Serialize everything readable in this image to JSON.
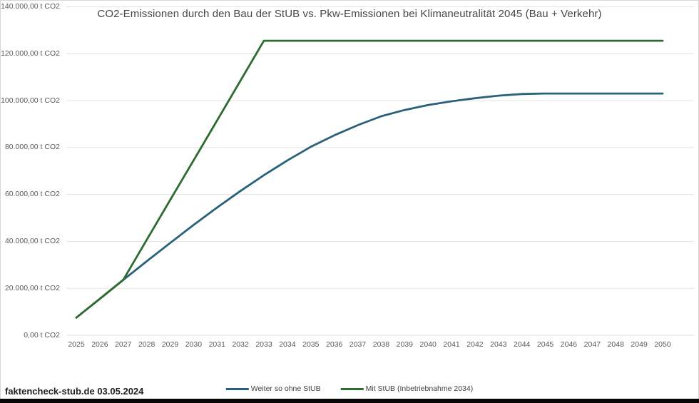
{
  "page": {
    "footer": "faktencheck-stub.de 03.05.2024"
  },
  "chart_data": {
    "type": "line",
    "title": "CO2-Emissionen durch den Bau der StUB vs. Pkw-Emissionen bei Klimaneutralität 2045 (Bau + Verkehr)",
    "categories": [
      "2025",
      "2026",
      "2027",
      "2028",
      "2029",
      "2030",
      "2031",
      "2032",
      "2033",
      "2034",
      "2035",
      "2036",
      "2037",
      "2038",
      "2039",
      "2040",
      "2041",
      "2042",
      "2043",
      "2044",
      "2045",
      "2046",
      "2047",
      "2048",
      "2049",
      "2050"
    ],
    "series": [
      {
        "name": "Weiter so ohne StUB",
        "color": "#2a617a",
        "values": [
          7500,
          15500,
          23600,
          31500,
          39300,
          47000,
          54400,
          61500,
          68200,
          74500,
          80300,
          85200,
          89500,
          93300,
          96000,
          98100,
          99700,
          101000,
          102100,
          102800,
          103000,
          103000,
          103000,
          103000,
          103000,
          103000
        ]
      },
      {
        "name": "Mit StUB (Inbetriebnahme 2034)",
        "color": "#2e6b30",
        "values": [
          7500,
          15500,
          23600,
          40600,
          57600,
          74500,
          91500,
          108500,
          125500,
          125500,
          125500,
          125500,
          125500,
          125500,
          125500,
          125500,
          125500,
          125500,
          125500,
          125500,
          125500,
          125500,
          125500,
          125500,
          125500,
          125500
        ]
      }
    ],
    "y_ticks": [
      "0,00 t CO2",
      "20.000,00 t CO2",
      "40.000,00 t CO2",
      "60.000,00 t CO2",
      "80.000,00 t CO2",
      "100.000,00 t CO2",
      "120.000,00 t CO2",
      "140.000,00 t CO2"
    ],
    "ylim": [
      0,
      140000
    ],
    "y_tick_step": 20000,
    "xlabel": "",
    "ylabel": "t CO2",
    "grid": true,
    "legend_position": "bottom"
  }
}
